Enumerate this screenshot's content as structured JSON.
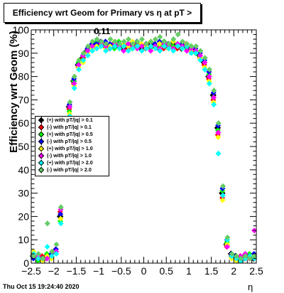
{
  "chart_data": {
    "type": "scatter",
    "title": "Efficiency wrt Geom for Primary vs   η at pT > 0.11",
    "xlabel": "η",
    "ylabel": "Efficiency wrt Geom (%)",
    "xlim": [
      -2.5,
      2.5
    ],
    "ylim": [
      0,
      100
    ],
    "x_ticks": [
      "−2.5",
      "−2",
      "−1.5",
      "−1",
      "−0.5",
      "0",
      "0.5",
      "1",
      "1.5",
      "2",
      "2.5"
    ],
    "y_ticks": [
      "0",
      "10",
      "20",
      "30",
      "40",
      "50",
      "60",
      "70",
      "80",
      "90",
      "100"
    ],
    "legend_position": "left-middle",
    "series": [
      {
        "name": "(+) with pT/|q| > 0.1",
        "color": "#000000",
        "offset": 0.0,
        "x": [
          -2.45,
          -2.35,
          -2.25,
          -2.15,
          -2.05,
          -1.95,
          -1.85,
          -1.75,
          -1.65,
          -1.55,
          -1.45,
          -1.35,
          -1.25,
          -1.15,
          -1.05,
          -0.95,
          -0.85,
          -0.75,
          -0.65,
          -0.55,
          -0.45,
          -0.35,
          -0.25,
          -0.15,
          -0.05,
          0.05,
          0.15,
          0.25,
          0.35,
          0.45,
          0.55,
          0.65,
          0.75,
          0.85,
          0.95,
          1.05,
          1.15,
          1.25,
          1.35,
          1.45,
          1.55,
          1.65,
          1.75,
          1.85,
          1.95,
          2.05,
          2.15,
          2.25,
          2.35,
          2.45
        ],
        "y": [
          3,
          2,
          2,
          3,
          3,
          5,
          20,
          50,
          67,
          78,
          85,
          88,
          91,
          93,
          94,
          94,
          93,
          93,
          94,
          93,
          92,
          93,
          94,
          93,
          92,
          93,
          94,
          93,
          92,
          94,
          93,
          94,
          93,
          92,
          93,
          92,
          91,
          89,
          86,
          80,
          72,
          58,
          30,
          8,
          4,
          3,
          2,
          3,
          3,
          2
        ]
      },
      {
        "name": "(-) with pT/|q| > 0.1",
        "color": "#ff0000",
        "offset": 0.5,
        "x": [
          -2.45,
          -2.35,
          -2.25,
          -2.15,
          -2.05,
          -1.95,
          -1.85,
          -1.75,
          -1.65,
          -1.55,
          -1.45,
          -1.35,
          -1.25,
          -1.15,
          -1.05,
          -0.95,
          -0.85,
          -0.75,
          -0.65,
          -0.55,
          -0.45,
          -0.35,
          -0.25,
          -0.15,
          -0.05,
          0.05,
          0.15,
          0.25,
          0.35,
          0.45,
          0.55,
          0.65,
          0.75,
          0.85,
          0.95,
          1.05,
          1.15,
          1.25,
          1.35,
          1.45,
          1.55,
          1.65,
          1.75,
          1.85,
          1.95,
          2.05,
          2.15,
          2.25,
          2.35,
          2.45
        ],
        "y": [
          4,
          2,
          3,
          2,
          3,
          6,
          22,
          48,
          66,
          77,
          84,
          88,
          90,
          93,
          93,
          95,
          94,
          92,
          93,
          94,
          93,
          92,
          93,
          94,
          93,
          92,
          93,
          94,
          93,
          92,
          94,
          93,
          92,
          93,
          94,
          91,
          92,
          88,
          85,
          79,
          70,
          55,
          28,
          7,
          3,
          2,
          3,
          2,
          2,
          3
        ]
      },
      {
        "name": "(+) with pT/|q| > 0.5",
        "color": "#00ff00",
        "offset": 1.0,
        "x": [
          -2.45,
          -2.35,
          -2.25,
          -2.15,
          -2.05,
          -1.95,
          -1.85,
          -1.75,
          -1.65,
          -1.55,
          -1.45,
          -1.35,
          -1.25,
          -1.15,
          -1.05,
          -0.95,
          -0.85,
          -0.75,
          -0.65,
          -0.55,
          -0.45,
          -0.35,
          -0.25,
          -0.15,
          -0.05,
          0.05,
          0.15,
          0.25,
          0.35,
          0.45,
          0.55,
          0.65,
          0.75,
          0.85,
          0.95,
          1.05,
          1.15,
          1.25,
          1.35,
          1.45,
          1.55,
          1.65,
          1.75,
          1.85,
          1.95,
          2.05,
          2.15,
          2.25,
          2.35,
          2.45
        ],
        "y": [
          3,
          1,
          2,
          4,
          2,
          5,
          18,
          47,
          65,
          78,
          86,
          87,
          91,
          92,
          95,
          93,
          94,
          93,
          92,
          95,
          93,
          94,
          92,
          93,
          94,
          93,
          92,
          94,
          93,
          95,
          92,
          93,
          94,
          93,
          92,
          93,
          90,
          89,
          87,
          81,
          71,
          57,
          31,
          9,
          3,
          2,
          1,
          2,
          4,
          3
        ]
      },
      {
        "name": "(-) with pT/|q| > 0.5",
        "color": "#0000ff",
        "offset": 1.5,
        "x": [
          -2.45,
          -2.35,
          -2.25,
          -2.15,
          -2.05,
          -1.95,
          -1.85,
          -1.75,
          -1.65,
          -1.55,
          -1.45,
          -1.35,
          -1.25,
          -1.15,
          -1.05,
          -0.95,
          -0.85,
          -0.75,
          -0.65,
          -0.55,
          -0.45,
          -0.35,
          -0.25,
          -0.15,
          -0.05,
          0.05,
          0.15,
          0.25,
          0.35,
          0.45,
          0.55,
          0.65,
          0.75,
          0.85,
          0.95,
          1.05,
          1.15,
          1.25,
          1.35,
          1.45,
          1.55,
          1.65,
          1.75,
          1.85,
          1.95,
          2.05,
          2.15,
          2.25,
          2.35,
          2.45
        ],
        "y": [
          2,
          3,
          2,
          2,
          4,
          6,
          21,
          51,
          68,
          79,
          85,
          89,
          92,
          94,
          94,
          95,
          95,
          94,
          93,
          94,
          94,
          93,
          94,
          95,
          93,
          94,
          93,
          94,
          95,
          93,
          94,
          95,
          93,
          94,
          93,
          92,
          92,
          90,
          87,
          82,
          73,
          59,
          32,
          10,
          4,
          3,
          2,
          2,
          3,
          4
        ]
      },
      {
        "name": "(+) with pT/|q| > 1.0",
        "color": "#ffff00",
        "offset": 2.0,
        "x": [
          -2.45,
          -2.35,
          -2.25,
          -2.15,
          -2.05,
          -1.95,
          -1.85,
          -1.75,
          -1.65,
          -1.55,
          -1.45,
          -1.35,
          -1.25,
          -1.15,
          -1.05,
          -0.95,
          -0.85,
          -0.75,
          -0.65,
          -0.55,
          -0.45,
          -0.35,
          -0.25,
          -0.15,
          -0.05,
          0.05,
          0.15,
          0.25,
          0.35,
          0.45,
          0.55,
          0.65,
          0.75,
          0.85,
          0.95,
          1.05,
          1.15,
          1.25,
          1.35,
          1.45,
          1.55,
          1.65,
          1.75,
          1.85,
          1.95,
          2.05,
          2.15,
          2.25,
          2.35,
          2.45
        ],
        "y": [
          5,
          2,
          1,
          3,
          2,
          4,
          19,
          46,
          64,
          76,
          84,
          86,
          90,
          92,
          93,
          94,
          92,
          93,
          95,
          92,
          94,
          93,
          95,
          92,
          94,
          93,
          95,
          92,
          94,
          93,
          92,
          95,
          93,
          92,
          94,
          91,
          90,
          88,
          84,
          78,
          69,
          54,
          27,
          8,
          2,
          1,
          2,
          3,
          2,
          3
        ]
      },
      {
        "name": "(-) with pT/|q| > 1.0",
        "color": "#ff00ff",
        "offset": 2.5,
        "x": [
          -2.45,
          -2.35,
          -2.25,
          -2.15,
          -2.05,
          -1.95,
          -1.85,
          -1.75,
          -1.65,
          -1.55,
          -1.45,
          -1.35,
          -1.25,
          -1.15,
          -1.05,
          -0.95,
          -0.85,
          -0.75,
          -0.65,
          -0.55,
          -0.45,
          -0.35,
          -0.25,
          -0.15,
          -0.05,
          0.05,
          0.15,
          0.25,
          0.35,
          0.45,
          0.55,
          0.65,
          0.75,
          0.85,
          0.95,
          1.05,
          1.15,
          1.25,
          1.35,
          1.45,
          1.55,
          1.65,
          1.75,
          1.85,
          1.95,
          2.05,
          2.15,
          2.25,
          2.35,
          2.45
        ],
        "y": [
          3,
          3,
          2,
          2,
          3,
          5,
          23,
          49,
          67,
          77,
          85,
          89,
          91,
          93,
          92,
          94,
          93,
          92,
          94,
          93,
          91,
          94,
          93,
          92,
          93,
          94,
          91,
          93,
          92,
          94,
          93,
          92,
          94,
          93,
          91,
          92,
          91,
          89,
          86,
          80,
          71,
          56,
          29,
          7,
          3,
          2,
          3,
          4,
          2,
          14
        ]
      },
      {
        "name": "(+) with pT/|q| > 2.0",
        "color": "#00ffff",
        "offset": 3.0,
        "x": [
          -2.45,
          -2.35,
          -2.25,
          -2.15,
          -2.05,
          -1.95,
          -1.85,
          -1.75,
          -1.65,
          -1.55,
          -1.45,
          -1.35,
          -1.25,
          -1.15,
          -1.05,
          -0.95,
          -0.85,
          -0.75,
          -0.65,
          -0.55,
          -0.45,
          -0.35,
          -0.25,
          -0.15,
          -0.05,
          0.05,
          0.15,
          0.25,
          0.35,
          0.45,
          0.55,
          0.65,
          0.75,
          0.85,
          0.95,
          1.05,
          1.15,
          1.25,
          1.35,
          1.45,
          1.55,
          1.65,
          1.75,
          1.85,
          1.95,
          2.05,
          2.15,
          2.25,
          2.35,
          2.45
        ],
        "y": [
          4,
          2,
          2,
          7,
          3,
          4,
          17,
          45,
          63,
          75,
          83,
          87,
          89,
          91,
          92,
          93,
          91,
          92,
          93,
          92,
          93,
          91,
          92,
          93,
          91,
          92,
          93,
          92,
          91,
          93,
          92,
          91,
          93,
          92,
          93,
          90,
          90,
          87,
          83,
          77,
          68,
          47,
          29,
          10,
          3,
          2,
          1,
          2,
          3,
          2
        ]
      },
      {
        "name": "(-) with pT/|q| > 2.0",
        "color": "#66cc66",
        "offset": 3.5,
        "x": [
          -2.45,
          -2.35,
          -2.25,
          -2.15,
          -2.05,
          -1.95,
          -1.85,
          -1.75,
          -1.65,
          -1.55,
          -1.45,
          -1.35,
          -1.25,
          -1.15,
          -1.05,
          -0.95,
          -0.85,
          -0.75,
          -0.65,
          -0.55,
          -0.45,
          -0.35,
          -0.25,
          -0.15,
          -0.05,
          0.05,
          0.15,
          0.25,
          0.35,
          0.45,
          0.55,
          0.65,
          0.75,
          0.85,
          0.95,
          1.05,
          1.15,
          1.25,
          1.35,
          1.45,
          1.55,
          1.65,
          1.75,
          1.85,
          1.95,
          2.05,
          2.15,
          2.25,
          2.35,
          2.45
        ],
        "y": [
          3,
          4,
          2,
          17,
          5,
          8,
          24,
          52,
          69,
          80,
          87,
          90,
          93,
          95,
          96,
          95,
          94,
          96,
          95,
          94,
          95,
          96,
          94,
          95,
          96,
          94,
          95,
          96,
          97,
          95,
          94,
          96,
          98,
          95,
          94,
          93,
          93,
          91,
          88,
          83,
          74,
          60,
          33,
          11,
          4,
          3,
          2,
          3,
          2,
          3
        ]
      }
    ]
  },
  "timestamp": "Thu Oct 15 19:24:40 2020"
}
